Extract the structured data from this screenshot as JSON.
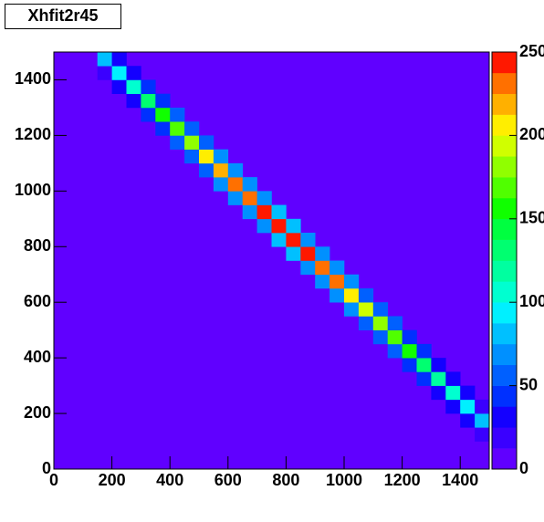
{
  "chart_data": {
    "type": "heatmap",
    "title": "Xhfit2r45",
    "x": [
      150,
      150,
      200,
      200,
      200,
      250,
      250,
      250,
      300,
      300,
      300,
      350,
      350,
      350,
      400,
      400,
      400,
      450,
      450,
      450,
      500,
      500,
      500,
      550,
      550,
      550,
      600,
      600,
      600,
      650,
      650,
      650,
      700,
      700,
      700,
      750,
      750,
      750,
      800,
      800,
      800,
      850,
      850,
      850,
      900,
      900,
      900,
      950,
      950,
      950,
      1000,
      1000,
      1000,
      1050,
      1050,
      1050,
      1100,
      1100,
      1100,
      1150,
      1150,
      1150,
      1200,
      1200,
      1200,
      1250,
      1250,
      1250,
      1300,
      1300,
      1300,
      1350,
      1350,
      1350,
      1400,
      1400,
      1400,
      1450,
      1450,
      1450
    ],
    "y": [
      1400,
      1450,
      1350,
      1400,
      1450,
      1300,
      1350,
      1400,
      1250,
      1300,
      1350,
      1200,
      1250,
      1300,
      1150,
      1200,
      1250,
      1100,
      1150,
      1200,
      1050,
      1100,
      1150,
      1000,
      1050,
      1100,
      950,
      1000,
      1050,
      900,
      950,
      1000,
      850,
      900,
      950,
      800,
      850,
      900,
      750,
      800,
      850,
      700,
      750,
      800,
      650,
      700,
      750,
      600,
      650,
      700,
      550,
      600,
      650,
      500,
      550,
      600,
      450,
      500,
      550,
      400,
      450,
      500,
      350,
      400,
      450,
      300,
      350,
      400,
      250,
      300,
      350,
      200,
      250,
      300,
      150,
      200,
      250,
      100,
      150,
      200
    ],
    "values": [
      24,
      80,
      29,
      95,
      29,
      33,
      110,
      33,
      39,
      130,
      39,
      45,
      150,
      45,
      51,
      170,
      51,
      56,
      185,
      56,
      60,
      200,
      60,
      65,
      215,
      65,
      68,
      225,
      68,
      71,
      235,
      71,
      74,
      245,
      74,
      75,
      250,
      75,
      75,
      250,
      75,
      74,
      245,
      74,
      71,
      235,
      71,
      68,
      225,
      68,
      63,
      210,
      63,
      59,
      195,
      59,
      54,
      180,
      54,
      50,
      165,
      50,
      45,
      150,
      45,
      41,
      135,
      41,
      36,
      120,
      36,
      32,
      105,
      32,
      27,
      90,
      27,
      24,
      80,
      24
    ],
    "xlim": [
      0,
      1500
    ],
    "ylim": [
      0,
      1500
    ],
    "zlim": [
      0,
      250
    ],
    "xticks": [
      0,
      200,
      400,
      600,
      800,
      1000,
      1200,
      1400
    ],
    "yticks": [
      0,
      200,
      400,
      600,
      800,
      1000,
      1200,
      1400
    ],
    "zticks": [
      0,
      50,
      100,
      150,
      200,
      250
    ],
    "colors": [
      "#6000ff",
      "#3a00ff",
      "#1400ff",
      "#0030ff",
      "#0060ff",
      "#0090ff",
      "#00c0ff",
      "#00f0ff",
      "#00ffd0",
      "#00ffa0",
      "#00ff70",
      "#00ff40",
      "#10ff00",
      "#50ff00",
      "#90ff00",
      "#d0ff00",
      "#ffee00",
      "#ffb000",
      "#ff7000",
      "#ff1800"
    ]
  }
}
